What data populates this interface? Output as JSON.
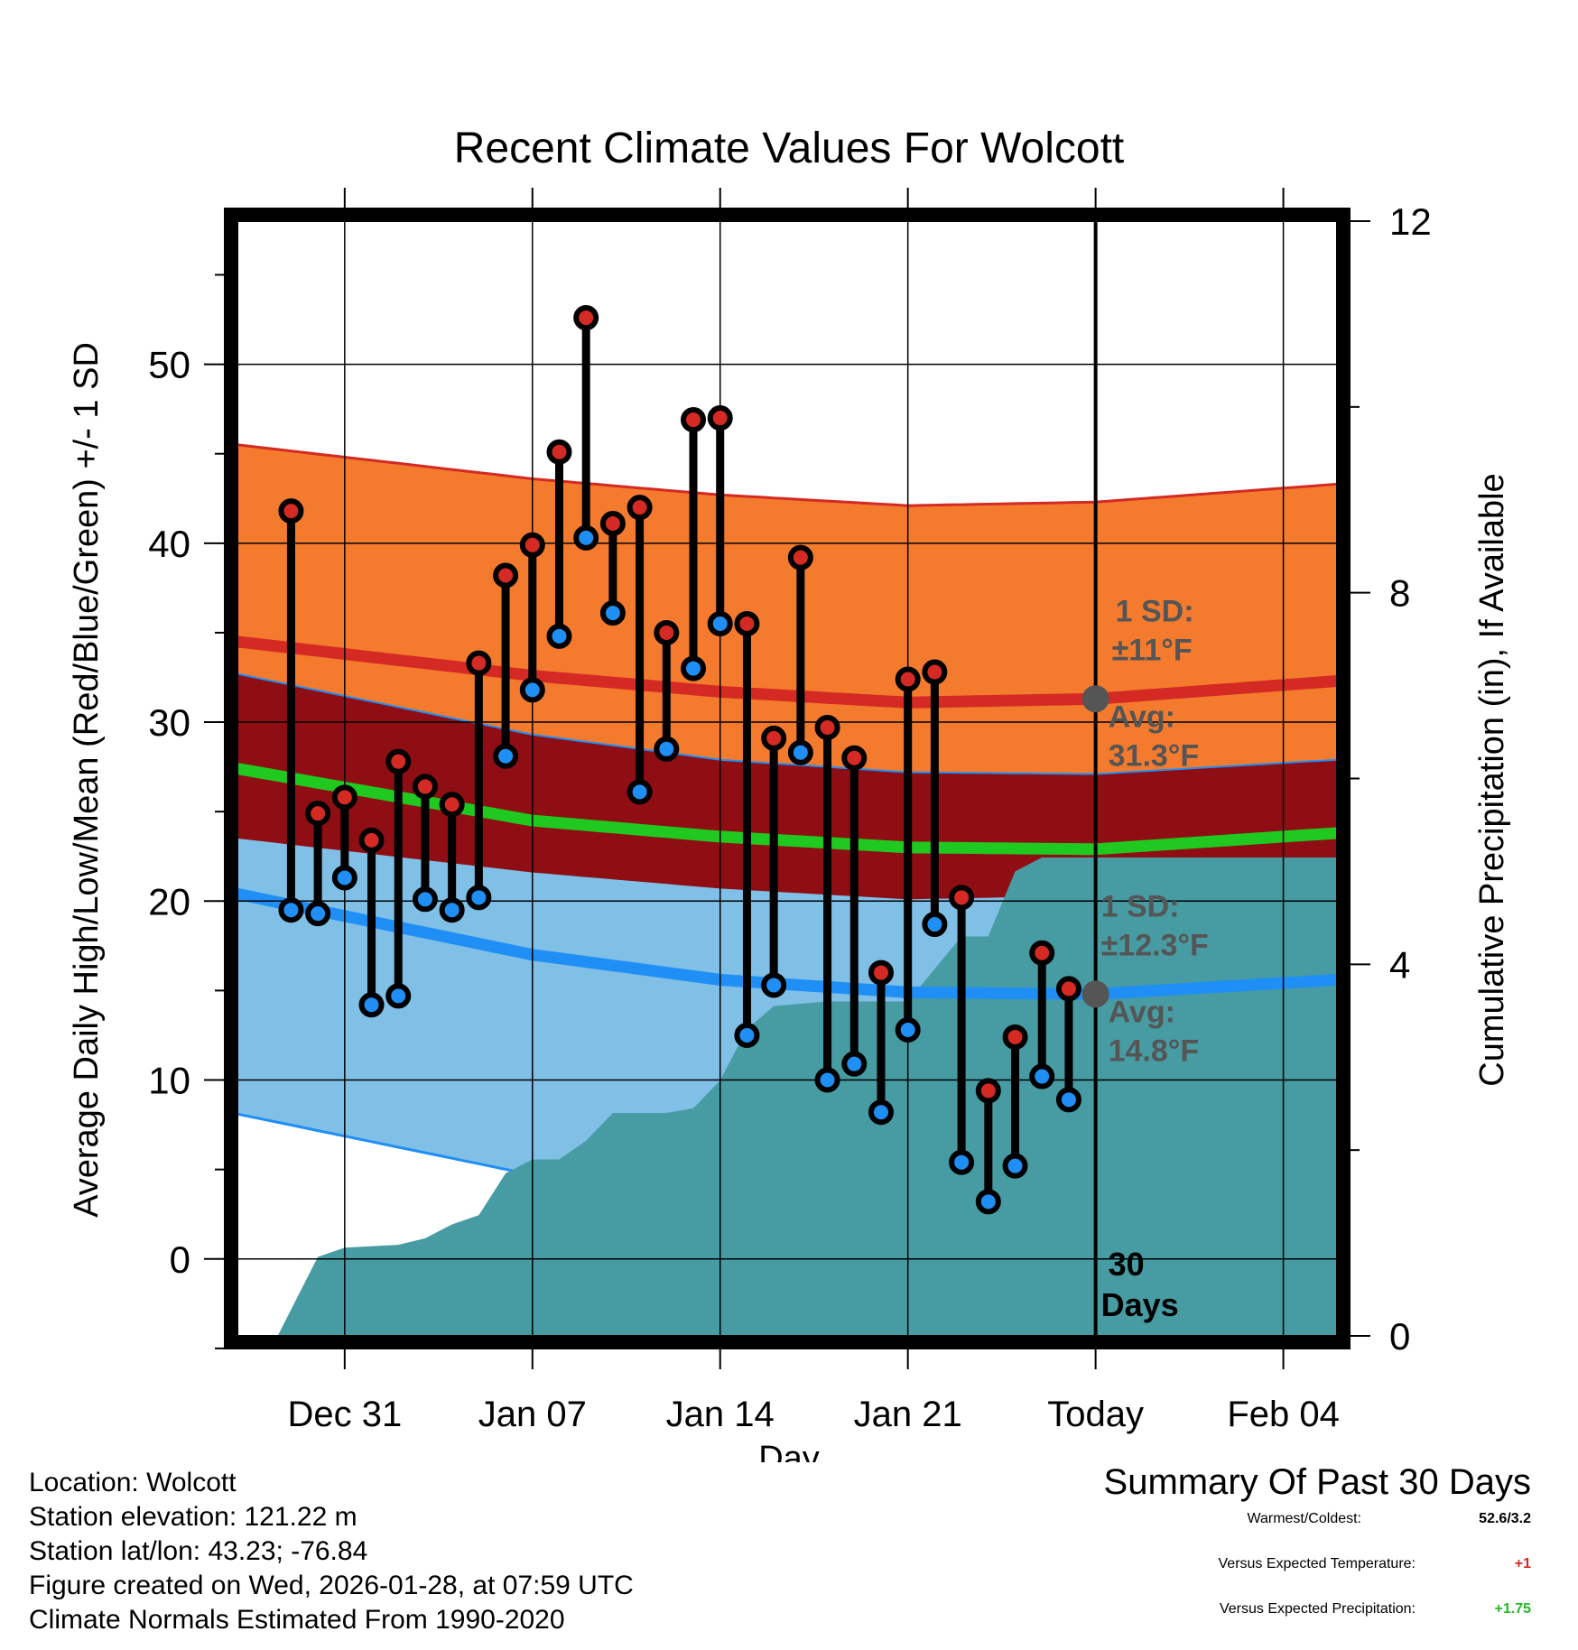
{
  "chart_data": {
    "type": "line",
    "title": "Recent Climate Values For Wolcott",
    "xlabel": "Day",
    "ylabel": "Average Daily High/Low/Mean (Red/Blue/Green) +/- 1 SD",
    "y2label": "Cumulative Precipitation (in), If Available",
    "x_range_days": [
      -32,
      9
    ],
    "ylim": [
      -4.3,
      58
    ],
    "y2lim": [
      0,
      12
    ],
    "yticks": [
      0,
      10,
      20,
      30,
      40,
      50
    ],
    "y2ticks": [
      0,
      4,
      8,
      12
    ],
    "xticks": [
      {
        "day": -28,
        "label": "Dec 31"
      },
      {
        "day": -21,
        "label": "Jan 07"
      },
      {
        "day": -14,
        "label": "Jan 14"
      },
      {
        "day": -7,
        "label": "Jan 21"
      },
      {
        "day": 0,
        "label": "Today"
      },
      {
        "day": 7,
        "label": "Feb 04"
      }
    ],
    "days": [
      -30,
      -29,
      -28,
      -27,
      -26,
      -25,
      -24,
      -23,
      -22,
      -21,
      -20,
      -19,
      -18,
      -17,
      -16,
      -15,
      -14,
      -13,
      -12,
      -11,
      -10,
      -9,
      -8,
      -7,
      -6,
      -5,
      -4,
      -3,
      -2,
      -1
    ],
    "highs": [
      41.8,
      24.9,
      25.8,
      23.4,
      27.8,
      26.4,
      25.4,
      33.3,
      38.2,
      39.9,
      45.1,
      52.6,
      41.1,
      42.0,
      35.0,
      46.9,
      47.0,
      35.5,
      29.1,
      39.2,
      29.7,
      28.0,
      16.0,
      32.4,
      32.8,
      20.2,
      9.4,
      12.4,
      17.1,
      15.1
    ],
    "lows": [
      19.5,
      19.3,
      21.3,
      14.2,
      14.7,
      20.1,
      19.5,
      20.2,
      28.1,
      31.8,
      34.8,
      40.3,
      36.1,
      26.1,
      28.5,
      33.0,
      35.5,
      12.5,
      15.3,
      28.3,
      10.0,
      10.9,
      8.2,
      12.8,
      18.7,
      5.4,
      3.2,
      5.2,
      10.2,
      8.9
    ],
    "normal_high_mean": [
      {
        "day": -32,
        "value": 34.5
      },
      {
        "day": -21,
        "value": 32.6
      },
      {
        "day": -14,
        "value": 31.7
      },
      {
        "day": -7,
        "value": 31.1
      },
      {
        "day": 0,
        "value": 31.3
      },
      {
        "day": 9,
        "value": 32.3
      }
    ],
    "normal_low_mean": [
      {
        "day": -32,
        "value": 20.4
      },
      {
        "day": -21,
        "value": 17.0
      },
      {
        "day": -14,
        "value": 15.6
      },
      {
        "day": -7,
        "value": 14.9
      },
      {
        "day": 0,
        "value": 14.8
      },
      {
        "day": 9,
        "value": 15.6
      }
    ],
    "normal_mean": [
      {
        "day": -32,
        "value": 27.4
      },
      {
        "day": -21,
        "value": 24.5
      },
      {
        "day": -14,
        "value": 23.6
      },
      {
        "day": -7,
        "value": 23.0
      },
      {
        "day": 0,
        "value": 22.9
      },
      {
        "day": 9,
        "value": 23.8
      }
    ],
    "high_sd": 11,
    "low_sd": 12.3,
    "precip_cumulative": [
      {
        "day": -31.4,
        "value": 0
      },
      {
        "day": -30.5,
        "value": 0
      },
      {
        "day": -29,
        "value": 0.85
      },
      {
        "day": -28,
        "value": 0.95
      },
      {
        "day": -26,
        "value": 0.98
      },
      {
        "day": -25,
        "value": 1.05
      },
      {
        "day": -24,
        "value": 1.2
      },
      {
        "day": -23,
        "value": 1.3
      },
      {
        "day": -22,
        "value": 1.75
      },
      {
        "day": -21,
        "value": 1.9
      },
      {
        "day": -20,
        "value": 1.9
      },
      {
        "day": -19,
        "value": 2.1
      },
      {
        "day": -18,
        "value": 2.4
      },
      {
        "day": -16,
        "value": 2.4
      },
      {
        "day": -15,
        "value": 2.45
      },
      {
        "day": -14,
        "value": 2.75
      },
      {
        "day": -13,
        "value": 3.3
      },
      {
        "day": -12,
        "value": 3.55
      },
      {
        "day": -10,
        "value": 3.6
      },
      {
        "day": -8,
        "value": 3.6
      },
      {
        "day": -7,
        "value": 3.6
      },
      {
        "day": -6,
        "value": 3.95
      },
      {
        "day": -5,
        "value": 4.3
      },
      {
        "day": -4,
        "value": 4.3
      },
      {
        "day": -3,
        "value": 5.0
      },
      {
        "day": -2,
        "value": 5.15
      },
      {
        "day": 0,
        "value": 5.15
      },
      {
        "day": 9.5,
        "value": 5.15
      }
    ],
    "annotations": {
      "high_sd": "1 SD:",
      "high_sd_val": "±11°F",
      "high_avg": "Avg:",
      "high_avg_val": "31.3°F",
      "low_sd": "1 SD:",
      "low_sd_val": "±12.3°F",
      "low_avg": "Avg:",
      "low_avg_val": "14.8°F",
      "window_num": "30",
      "window_unit": "Days"
    },
    "colors": {
      "high_band": "#f47b2e",
      "high_line": "#d42a23",
      "overlap_band": "#8f0e14",
      "low_band": "#80bfe6",
      "low_line": "#1f8ff5",
      "mean_line": "#1fc91f",
      "precip": "#479ba2",
      "high_dot": "#d42a23",
      "low_dot": "#1f8ff5",
      "annotation": "#555555"
    }
  },
  "info": {
    "location": "Location: Wolcott",
    "elevation": "Station elevation: 121.22 m",
    "latlon": "Station lat/lon: 43.23; -76.84",
    "created": "Figure created on Wed, 2026-01-28, at 07:59 UTC",
    "normals": "Climate Normals Estimated From 1990-2020"
  },
  "summary": {
    "title": "Summary Of Past 30 Days",
    "warm_cold_label": "Warmest/Coldest:",
    "warm_cold_value": "52.6/3.2",
    "temp_label": "Versus Expected Temperature:",
    "temp_value": "+1",
    "temp_color": "#d42a23",
    "precip_label": "Versus Expected Precipitation:",
    "precip_value": "+1.75",
    "precip_color": "#22bb22"
  }
}
